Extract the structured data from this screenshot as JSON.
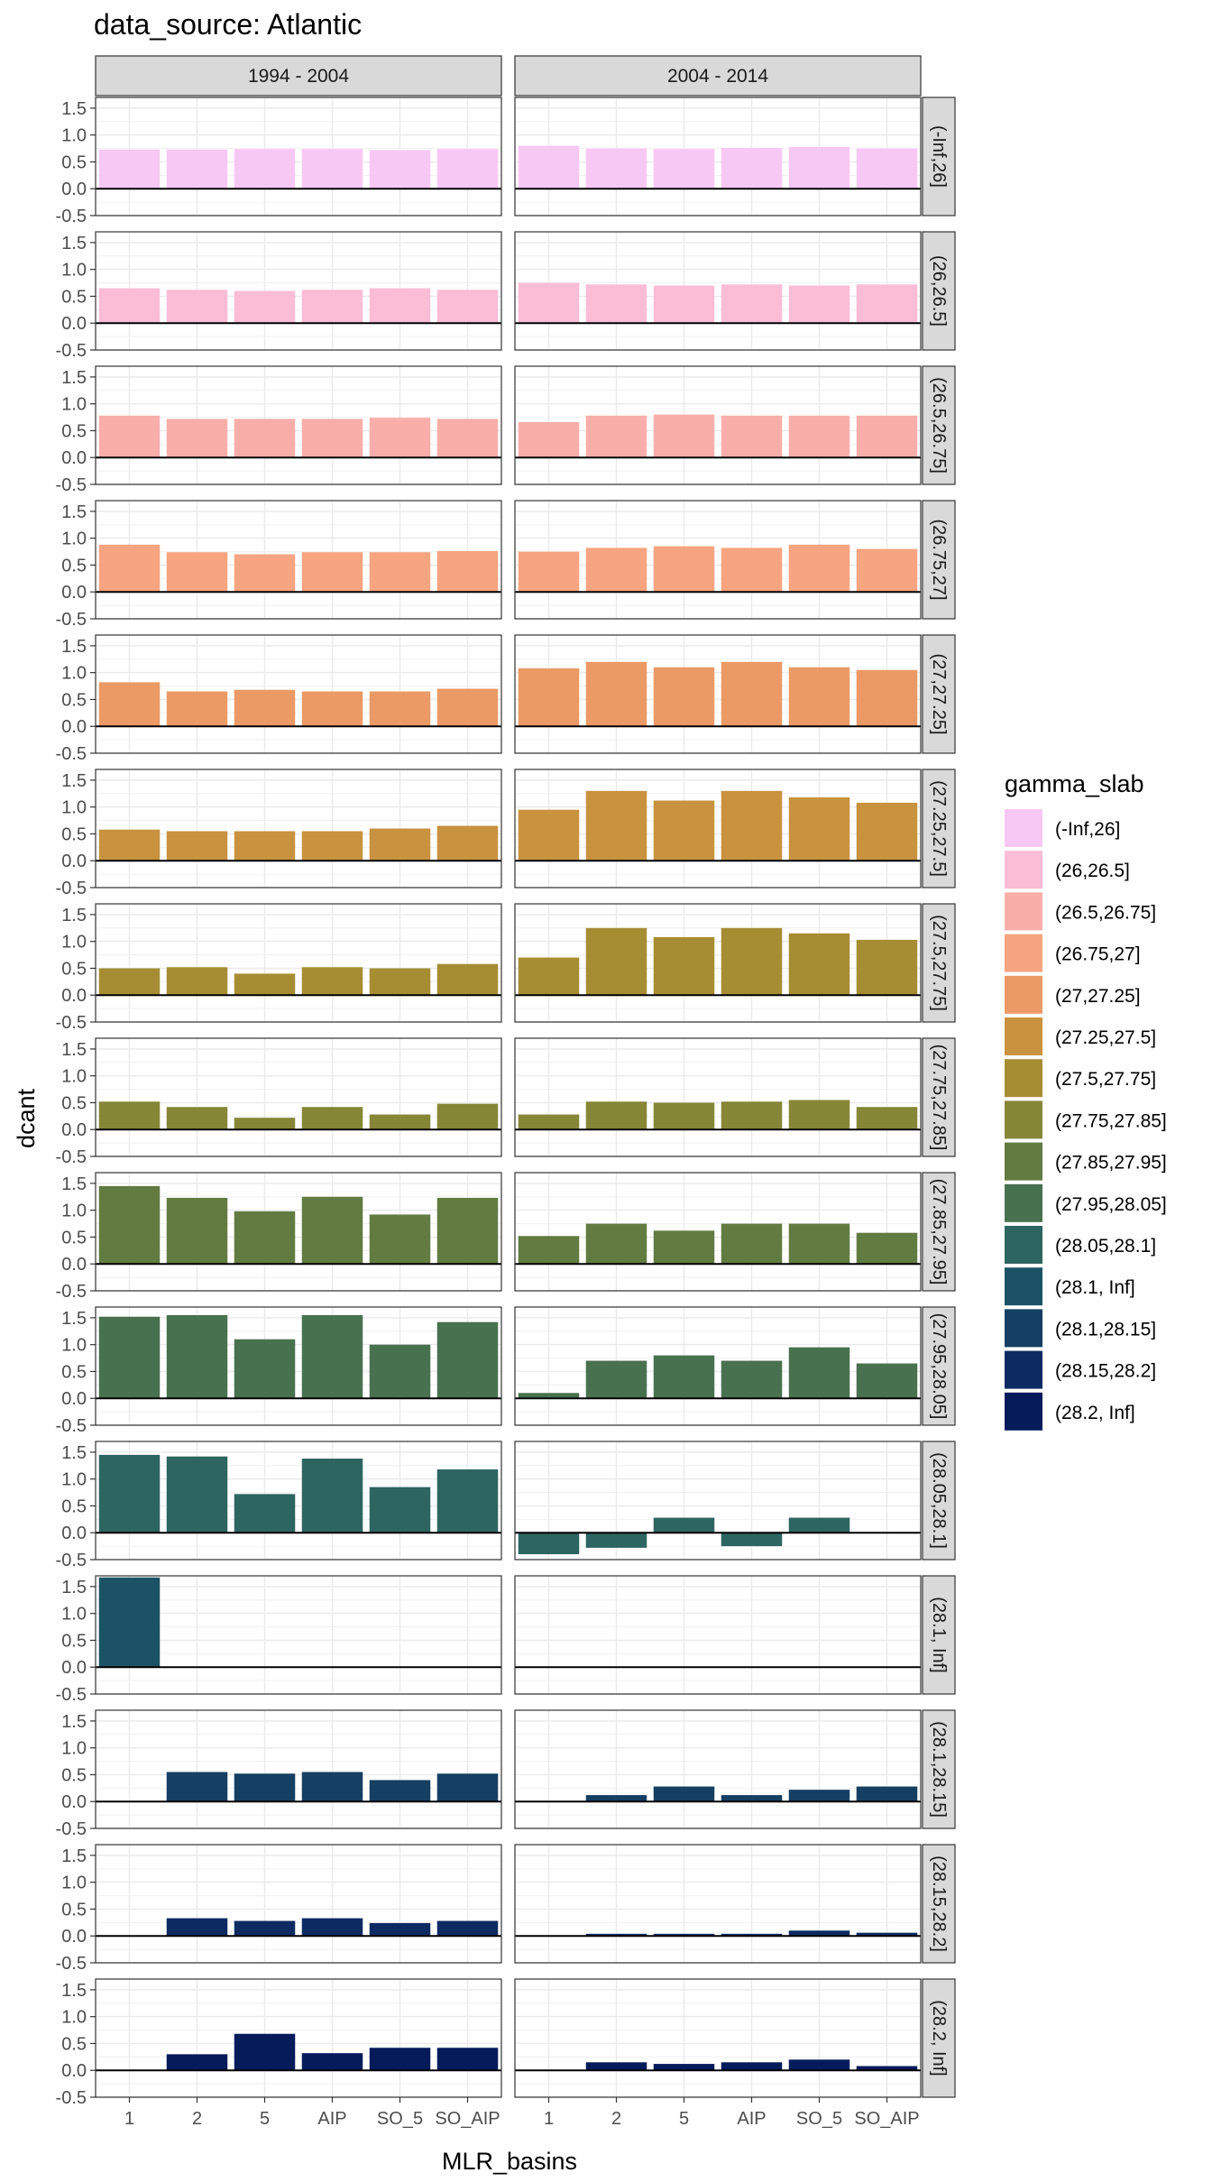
{
  "chart_data": {
    "type": "bar",
    "title": "data_source: Atlantic",
    "xlabel": "MLR_basins",
    "ylabel": "dcant",
    "categories": [
      "1",
      "2",
      "5",
      "AIP",
      "SO_5",
      "SO_AIP"
    ],
    "columns": [
      "1994 - 2004",
      "2004 - 2014"
    ],
    "ylim": [
      -0.5,
      1.7
    ],
    "yticks": [
      -0.5,
      0.0,
      0.5,
      1.0,
      1.5
    ],
    "ytick_labels": [
      "-0.5",
      "0.0",
      "0.5",
      "1.0",
      "1.5"
    ],
    "grid": true,
    "legend": {
      "title": "gamma_slab",
      "position": "right",
      "entries": [
        {
          "label": "(-Inf,26]",
          "color": "#F8C8F5"
        },
        {
          "label": "(26,26.5]",
          "color": "#FBBCD6"
        },
        {
          "label": "(26.5,26.75]",
          "color": "#F9AEAA"
        },
        {
          "label": "(26.75,27]",
          "color": "#F7A480"
        },
        {
          "label": "(27,27.25]",
          "color": "#EB9A65"
        },
        {
          "label": "(27.25,27.5]",
          "color": "#C9923F"
        },
        {
          "label": "(27.5,27.75]",
          "color": "#A68D33"
        },
        {
          "label": "(27.75,27.85]",
          "color": "#868637"
        },
        {
          "label": "(27.85,27.95]",
          "color": "#627B41"
        },
        {
          "label": "(27.95,28.05]",
          "color": "#487150"
        },
        {
          "label": "(28.05,28.1]",
          "color": "#2D6560"
        },
        {
          "label": "(28.1, Inf]",
          "color": "#1B5265"
        },
        {
          "label": "(28.1,28.15]",
          "color": "#153F63"
        },
        {
          "label": "(28.15,28.2]",
          "color": "#0D2B62"
        },
        {
          "label": "(28.2, Inf]",
          "color": "#061B5A"
        }
      ]
    },
    "rows": [
      {
        "label": "(-Inf,26]",
        "color": "#F8C8F5",
        "series": [
          {
            "name": "1994 - 2004",
            "values": [
              0.73,
              0.73,
              0.74,
              0.74,
              0.72,
              0.74
            ]
          },
          {
            "name": "2004 - 2014",
            "values": [
              0.8,
              0.75,
              0.74,
              0.76,
              0.78,
              0.75
            ]
          }
        ]
      },
      {
        "label": "(26,26.5]",
        "color": "#FBBCD6",
        "series": [
          {
            "name": "1994 - 2004",
            "values": [
              0.65,
              0.62,
              0.6,
              0.62,
              0.65,
              0.62
            ]
          },
          {
            "name": "2004 - 2014",
            "values": [
              0.75,
              0.72,
              0.7,
              0.72,
              0.7,
              0.72
            ]
          }
        ]
      },
      {
        "label": "(26.5,26.75]",
        "color": "#F9AEAA",
        "series": [
          {
            "name": "1994 - 2004",
            "values": [
              0.78,
              0.72,
              0.72,
              0.72,
              0.74,
              0.72
            ]
          },
          {
            "name": "2004 - 2014",
            "values": [
              0.66,
              0.78,
              0.8,
              0.78,
              0.78,
              0.78
            ]
          }
        ]
      },
      {
        "label": "(26.75,27]",
        "color": "#F7A480",
        "series": [
          {
            "name": "1994 - 2004",
            "values": [
              0.88,
              0.74,
              0.7,
              0.74,
              0.74,
              0.76
            ]
          },
          {
            "name": "2004 - 2014",
            "values": [
              0.75,
              0.82,
              0.85,
              0.82,
              0.88,
              0.8
            ]
          }
        ]
      },
      {
        "label": "(27,27.25]",
        "color": "#EB9A65",
        "series": [
          {
            "name": "1994 - 2004",
            "values": [
              0.82,
              0.65,
              0.68,
              0.65,
              0.65,
              0.7
            ]
          },
          {
            "name": "2004 - 2014",
            "values": [
              1.08,
              1.2,
              1.1,
              1.2,
              1.1,
              1.05
            ]
          }
        ]
      },
      {
        "label": "(27.25,27.5]",
        "color": "#C9923F",
        "series": [
          {
            "name": "1994 - 2004",
            "values": [
              0.58,
              0.55,
              0.55,
              0.55,
              0.6,
              0.65
            ]
          },
          {
            "name": "2004 - 2014",
            "values": [
              0.95,
              1.3,
              1.12,
              1.3,
              1.18,
              1.08
            ]
          }
        ]
      },
      {
        "label": "(27.5,27.75]",
        "color": "#A68D33",
        "series": [
          {
            "name": "1994 - 2004",
            "values": [
              0.5,
              0.52,
              0.4,
              0.52,
              0.5,
              0.58
            ]
          },
          {
            "name": "2004 - 2014",
            "values": [
              0.7,
              1.25,
              1.08,
              1.25,
              1.15,
              1.03
            ]
          }
        ]
      },
      {
        "label": "(27.75,27.85]",
        "color": "#868637",
        "series": [
          {
            "name": "1994 - 2004",
            "values": [
              0.52,
              0.42,
              0.22,
              0.42,
              0.28,
              0.48
            ]
          },
          {
            "name": "2004 - 2014",
            "values": [
              0.28,
              0.52,
              0.5,
              0.52,
              0.55,
              0.42
            ]
          }
        ]
      },
      {
        "label": "(27.85,27.95]",
        "color": "#627B41",
        "series": [
          {
            "name": "1994 - 2004",
            "values": [
              1.45,
              1.23,
              0.98,
              1.25,
              0.92,
              1.23
            ]
          },
          {
            "name": "2004 - 2014",
            "values": [
              0.52,
              0.75,
              0.62,
              0.75,
              0.75,
              0.58
            ]
          }
        ]
      },
      {
        "label": "(27.95,28.05]",
        "color": "#487150",
        "series": [
          {
            "name": "1994 - 2004",
            "values": [
              1.52,
              1.55,
              1.1,
              1.55,
              1.0,
              1.42
            ]
          },
          {
            "name": "2004 - 2014",
            "values": [
              0.1,
              0.7,
              0.8,
              0.7,
              0.95,
              0.65
            ]
          }
        ]
      },
      {
        "label": "(28.05,28.1]",
        "color": "#2D6560",
        "series": [
          {
            "name": "1994 - 2004",
            "values": [
              1.45,
              1.42,
              0.72,
              1.38,
              0.85,
              1.18
            ]
          },
          {
            "name": "2004 - 2014",
            "values": [
              -0.4,
              -0.28,
              0.28,
              -0.25,
              0.28,
              0.0
            ]
          }
        ]
      },
      {
        "label": "(28.1, Inf]",
        "color": "#1B5265",
        "series": [
          {
            "name": "1994 - 2004",
            "values": [
              1.67,
              null,
              null,
              null,
              null,
              null
            ]
          },
          {
            "name": "2004 - 2014",
            "values": [
              0.0,
              null,
              null,
              null,
              null,
              null
            ]
          }
        ]
      },
      {
        "label": "(28.1,28.15]",
        "color": "#153F63",
        "series": [
          {
            "name": "1994 - 2004",
            "values": [
              null,
              0.55,
              0.52,
              0.55,
              0.4,
              0.52
            ]
          },
          {
            "name": "2004 - 2014",
            "values": [
              null,
              0.12,
              0.28,
              0.12,
              0.22,
              0.28
            ]
          }
        ]
      },
      {
        "label": "(28.15,28.2]",
        "color": "#0D2B62",
        "series": [
          {
            "name": "1994 - 2004",
            "values": [
              null,
              0.33,
              0.28,
              0.33,
              0.24,
              0.28
            ]
          },
          {
            "name": "2004 - 2014",
            "values": [
              null,
              0.04,
              0.04,
              0.04,
              0.1,
              0.06
            ]
          }
        ]
      },
      {
        "label": "(28.2, Inf]",
        "color": "#061B5A",
        "series": [
          {
            "name": "1994 - 2004",
            "values": [
              null,
              0.3,
              0.68,
              0.32,
              0.42,
              0.42
            ]
          },
          {
            "name": "2004 - 2014",
            "values": [
              null,
              0.15,
              0.12,
              0.15,
              0.2,
              0.08
            ]
          }
        ]
      }
    ]
  }
}
